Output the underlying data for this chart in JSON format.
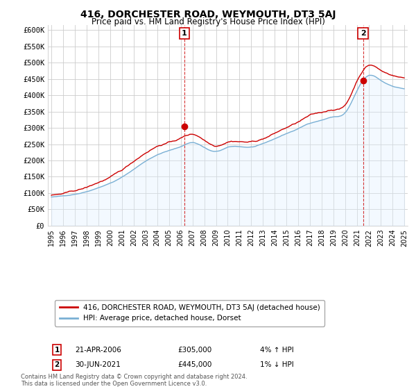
{
  "title": "416, DORCHESTER ROAD, WEYMOUTH, DT3 5AJ",
  "subtitle": "Price paid vs. HM Land Registry's House Price Index (HPI)",
  "ylabel_ticks": [
    "£0",
    "£50K",
    "£100K",
    "£150K",
    "£200K",
    "£250K",
    "£300K",
    "£350K",
    "£400K",
    "£450K",
    "£500K",
    "£550K",
    "£600K"
  ],
  "ytick_values": [
    0,
    50000,
    100000,
    150000,
    200000,
    250000,
    300000,
    350000,
    400000,
    450000,
    500000,
    550000,
    600000
  ],
  "ylim": [
    0,
    615000
  ],
  "sale1_x": 2006.31,
  "sale1_y": 305000,
  "sale2_x": 2021.5,
  "sale2_y": 445000,
  "legend_line1": "416, DORCHESTER ROAD, WEYMOUTH, DT3 5AJ (detached house)",
  "legend_line2": "HPI: Average price, detached house, Dorset",
  "footer": "Contains HM Land Registry data © Crown copyright and database right 2024.\nThis data is licensed under the Open Government Licence v3.0.",
  "line_color_red": "#cc0000",
  "line_color_blue": "#7ab0d4",
  "fill_color_blue": "#ddeeff",
  "background_color": "#ffffff",
  "grid_color": "#cccccc",
  "xlim_start": 1994.7,
  "xlim_end": 2025.3,
  "ann1_date": "21-APR-2006",
  "ann1_price": "£305,000",
  "ann1_hpi": "4% ↑ HPI",
  "ann2_date": "30-JUN-2021",
  "ann2_price": "£445,000",
  "ann2_hpi": "1% ↓ HPI"
}
